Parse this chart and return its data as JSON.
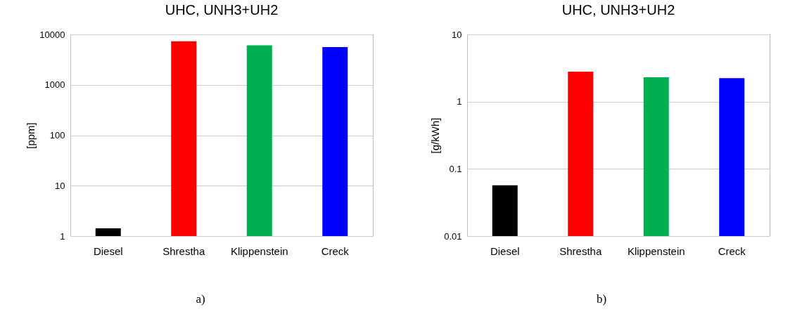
{
  "chart_data": [
    {
      "type": "bar",
      "title": "UHC, UNH3+UH2",
      "ylabel": "[ppm]",
      "categories": [
        "Diesel",
        "Shrestha",
        "Klippenstein",
        "Creck"
      ],
      "values": [
        1.42,
        7300,
        6100,
        5600
      ],
      "colors": [
        "#000000",
        "#ff0000",
        "#00b050",
        "#0000ff"
      ],
      "log": "y",
      "ylim": [
        1,
        10000
      ],
      "yticks": [
        1,
        10,
        100,
        1000,
        10000
      ],
      "grid": "y",
      "annotations": [
        "a)"
      ]
    },
    {
      "type": "bar",
      "title": "UHC, UNH3+UH2",
      "ylabel": "[g/kWh]",
      "categories": [
        "Diesel",
        "Shrestha",
        "Klippenstein",
        "Creck"
      ],
      "values": [
        0.057,
        2.79,
        2.3,
        2.24
      ],
      "colors": [
        "#000000",
        "#ff0000",
        "#00b050",
        "#0000ff"
      ],
      "log": "y",
      "ylim": [
        0.01,
        10
      ],
      "yticks": [
        0.01,
        0.1,
        1,
        10
      ],
      "grid": "y",
      "annotations": [
        "b)"
      ]
    }
  ]
}
